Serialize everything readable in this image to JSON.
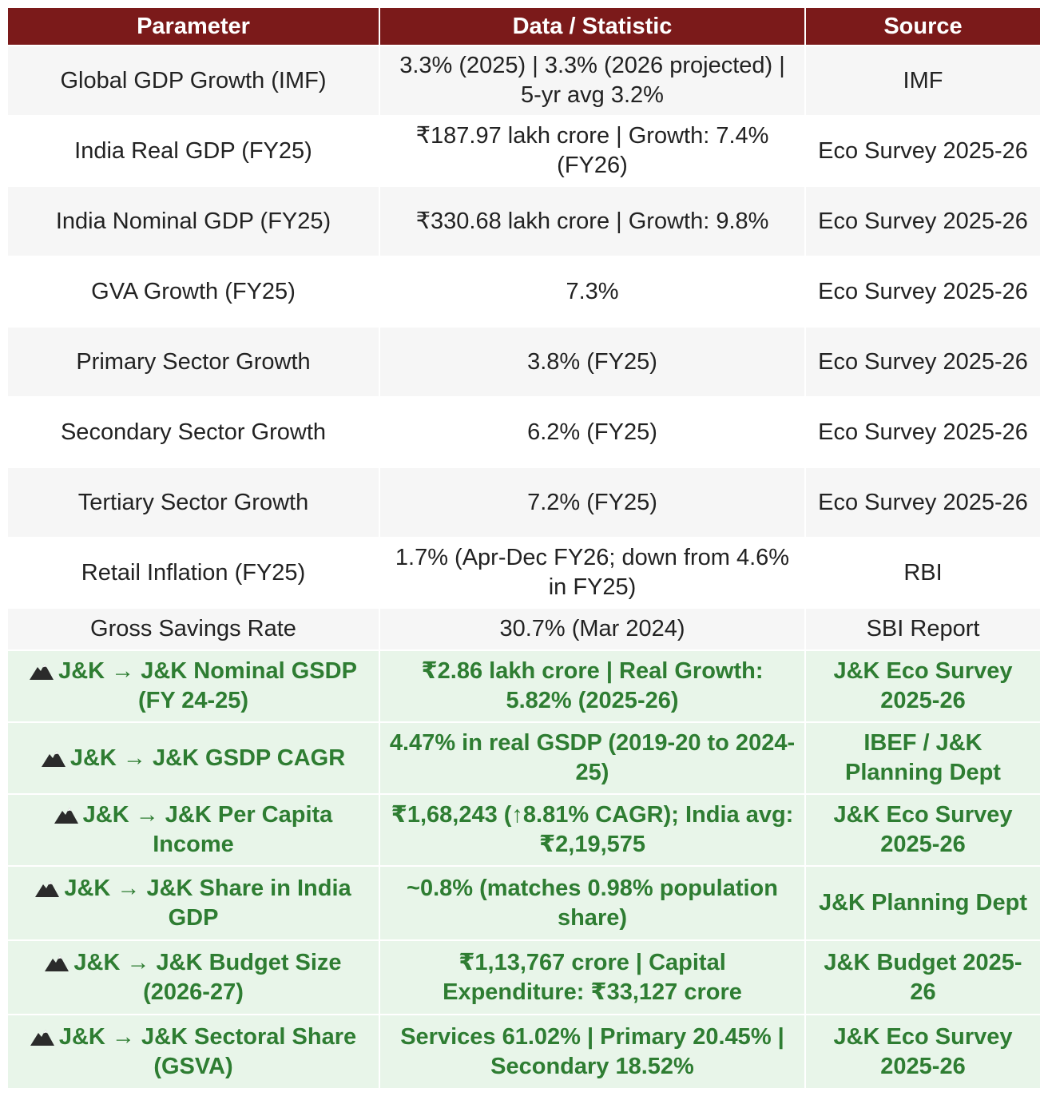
{
  "table": {
    "header": [
      "Parameter",
      "Data / Statistic",
      "Source"
    ],
    "rows": [
      {
        "cells": [
          "Global GDP Growth (IMF)",
          "3.3% (2025) | 3.3% (2026 projected) | 5-yr avg 3.2%",
          "IMF"
        ],
        "highlight": false
      },
      {
        "cells": [
          "India Real GDP (FY25)",
          "₹187.97 lakh crore | Growth: 7.4% (FY26)",
          "Eco Survey 2025-26"
        ],
        "highlight": false
      },
      {
        "cells": [
          "India Nominal GDP (FY25)",
          "₹330.68 lakh crore | Growth: 9.8%",
          "Eco Survey 2025-26"
        ],
        "highlight": false
      },
      {
        "cells": [
          "GVA Growth (FY25)",
          "7.3%",
          "Eco Survey 2025-26"
        ],
        "highlight": false
      },
      {
        "cells": [
          "Primary Sector Growth",
          "3.8% (FY25)",
          "Eco Survey 2025-26"
        ],
        "highlight": false
      },
      {
        "cells": [
          "Secondary Sector Growth",
          "6.2% (FY25)",
          "Eco Survey 2025-26"
        ],
        "highlight": false
      },
      {
        "cells": [
          "Tertiary Sector Growth",
          "7.2% (FY25)",
          "Eco Survey 2025-26"
        ],
        "highlight": false
      },
      {
        "cells": [
          "Retail Inflation (FY25)",
          "1.7% (Apr-Dec FY26; down from 4.6% in FY25)",
          "RBI"
        ],
        "highlight": false
      },
      {
        "cells": [
          "Gross Savings Rate",
          "30.7% (Mar 2024)",
          "SBI Report"
        ],
        "highlight": false
      },
      {
        "cells": [
          "J&K → J&K Nominal GSDP (FY 24-25)",
          "₹2.86 lakh crore | Real Growth: 5.82% (2025-26)",
          "J&K Eco Survey 2025-26"
        ],
        "highlight": true
      },
      {
        "cells": [
          "J&K → J&K GSDP CAGR",
          "4.47% in real GSDP (2019-20 to 2024-25)",
          "IBEF / J&K Planning Dept"
        ],
        "highlight": true
      },
      {
        "cells": [
          "J&K → J&K Per Capita Income",
          "₹1,68,243 (↑8.81% CAGR); India avg: ₹2,19,575",
          "J&K Eco Survey 2025-26"
        ],
        "highlight": true
      },
      {
        "cells": [
          "J&K → J&K Share in India GDP",
          "~0.8% (matches 0.98% population share)",
          "J&K Planning Dept"
        ],
        "highlight": true
      },
      {
        "cells": [
          "J&K → J&K Budget Size (2026-27)",
          "₹1,13,767 crore | Capital Expenditure: ₹33,127 crore",
          "J&K Budget 2025-26"
        ],
        "highlight": true
      },
      {
        "cells": [
          "J&K → J&K Sectoral Share (GSVA)",
          "Services 61.02% | Primary 20.45% | Secondary 18.52%",
          "J&K Eco Survey 2025-26"
        ],
        "highlight": true
      }
    ]
  }
}
